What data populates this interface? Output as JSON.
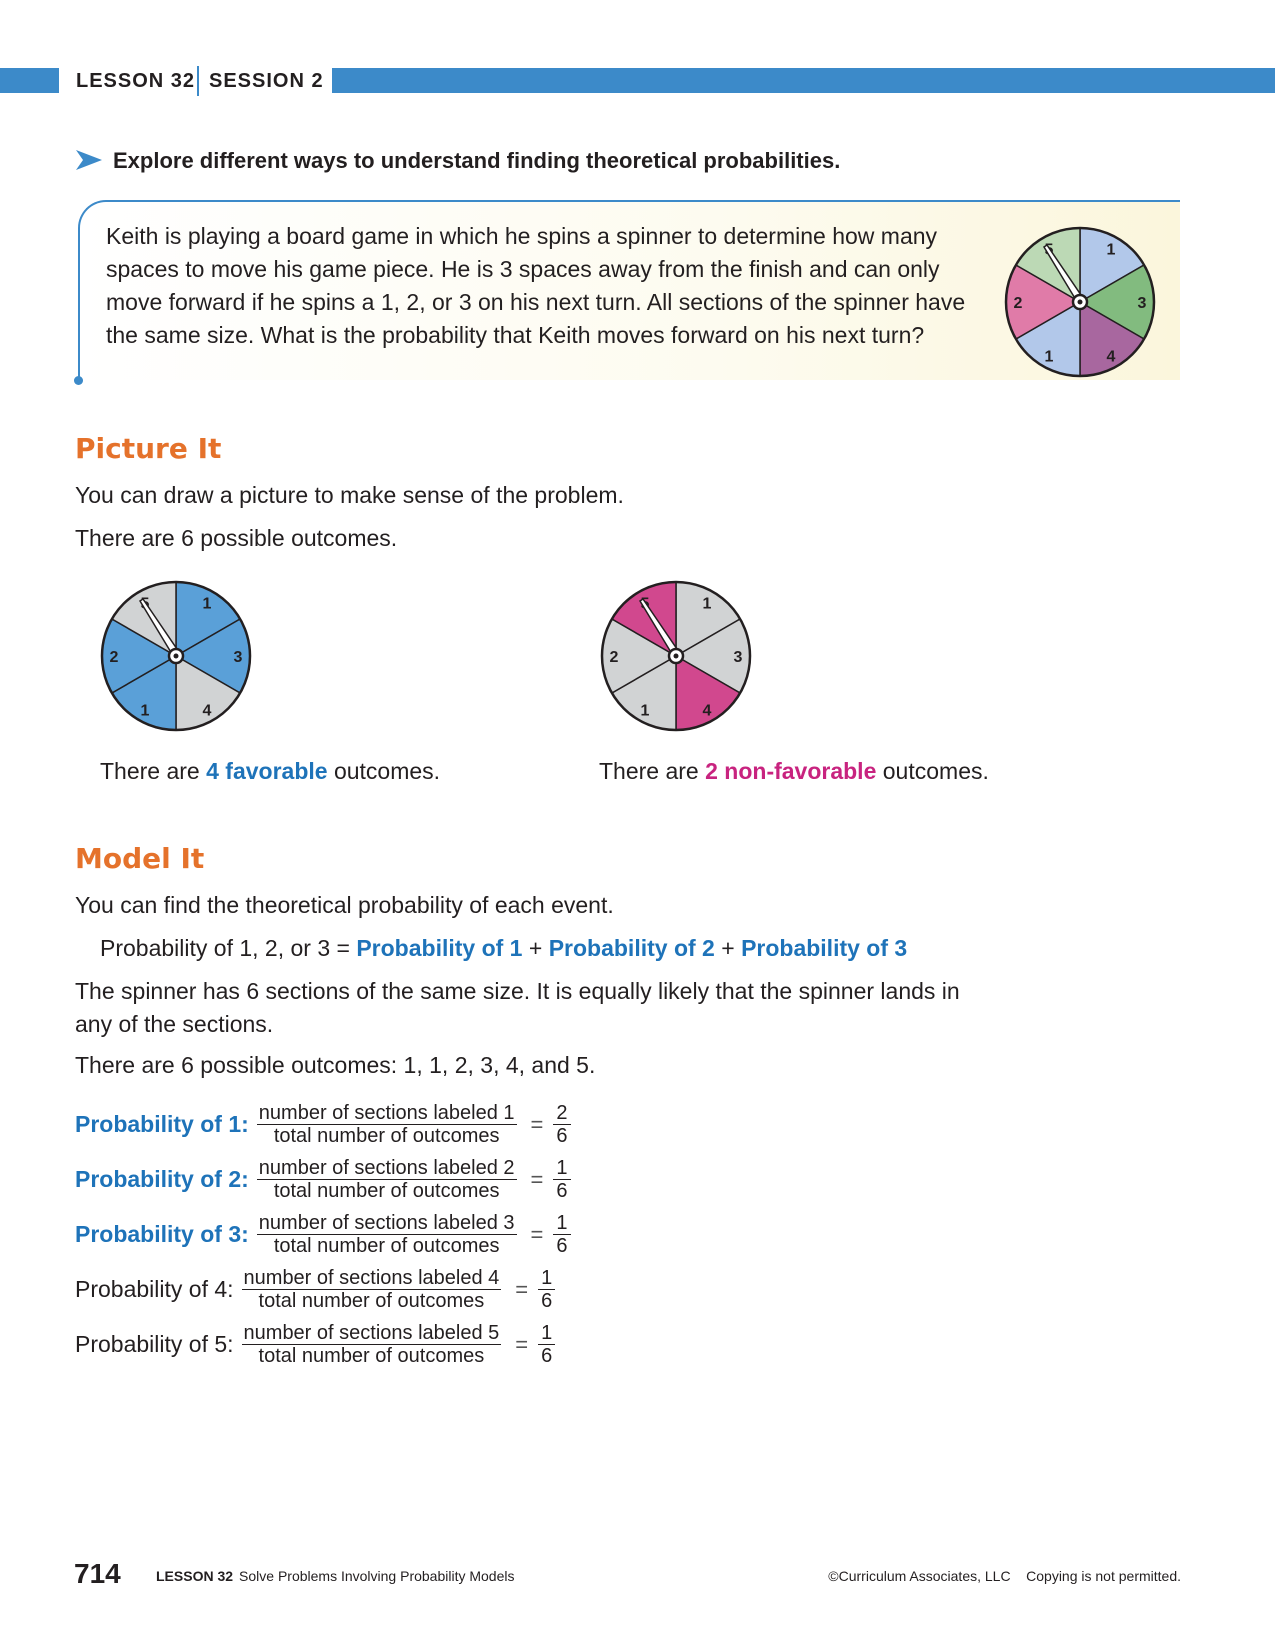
{
  "header": {
    "lesson": "LESSON 32",
    "session": "SESSION 2"
  },
  "explore": "Explore different ways to understand finding theoretical probabilities.",
  "problem": {
    "text": "Keith is playing a board game in which he spins a spinner to determine how many spaces to move his game piece. He is 3 spaces away from the finish and can only move forward if he spins a 1, 2, or 3 on his next turn. All sections of the spinner have the same size. What is the probability that Keith moves forward on his next turn?",
    "spinner_labels": [
      "1",
      "3",
      "4",
      "1",
      "2",
      "5"
    ],
    "spinner_colors": [
      "#b2c8ea",
      "#82bb7f",
      "#a8679f",
      "#b2c8ea",
      "#e07ba8",
      "#bcd9b5"
    ]
  },
  "picture_it": {
    "title": "Picture It",
    "line1": "You can draw a picture to make sense of the problem.",
    "line2": "There are 6 possible outcomes.",
    "left_caption": {
      "pre": "There are ",
      "highlight": "4 favorable",
      "post": " outcomes."
    },
    "right_caption": {
      "pre": "There are ",
      "highlight": "2 non-favorable",
      "post": " outcomes."
    },
    "left_colors": [
      "#5aa0d8",
      "#5aa0d8",
      "#d1d3d4",
      "#5aa0d8",
      "#5aa0d8",
      "#d1d3d4"
    ],
    "right_colors": [
      "#d1d3d4",
      "#d1d3d4",
      "#d1488e",
      "#d1d3d4",
      "#d1d3d4",
      "#d1488e"
    ],
    "accent_blue": "#1e73b9",
    "accent_magenta": "#c8237f"
  },
  "model_it": {
    "title": "Model It",
    "line1": "You can find the theoretical probability of each event.",
    "equation": {
      "lhs": "Probability of 1, 2, or 3",
      "eq": "=",
      "plus": "+",
      "t1": "Probability of 1",
      "t2": "Probability of 2",
      "t3": "Probability of 3"
    },
    "para": "The spinner has 6 sections of the same size. It is equally likely that the spinner lands in any of the sections.",
    "outcomes": "There are 6 possible outcomes: 1, 1, 2, 3, 4, and 5.",
    "rows": [
      {
        "label": "Probability of 1:",
        "num": "number of sections labeled 1",
        "den": "total number of outcomes",
        "eq": "=",
        "rn": "2",
        "rd": "6"
      },
      {
        "label": "Probability of 2:",
        "num": "number of sections labeled 2",
        "den": "total number of outcomes",
        "eq": "=",
        "rn": "1",
        "rd": "6"
      },
      {
        "label": "Probability of 3:",
        "num": "number of sections labeled 3",
        "den": "total number of outcomes",
        "eq": "=",
        "rn": "1",
        "rd": "6"
      },
      {
        "label": "Probability of 4:",
        "num": "number of sections labeled 4",
        "den": "total number of outcomes",
        "eq": "=",
        "rn": "1",
        "rd": "6"
      },
      {
        "label": "Probability of 5:",
        "num": "number of sections labeled 5",
        "den": "total number of outcomes",
        "eq": "=",
        "rn": "1",
        "rd": "6"
      }
    ]
  },
  "footer": {
    "page": "714",
    "lesson": "LESSON 32",
    "title": "Solve Problems Involving Probability Models",
    "copyright": "©Curriculum Associates, LLC",
    "notice": "Copying is not permitted."
  },
  "colors": {
    "brand_blue": "#3c8ac9",
    "section_orange": "#e5722b"
  }
}
